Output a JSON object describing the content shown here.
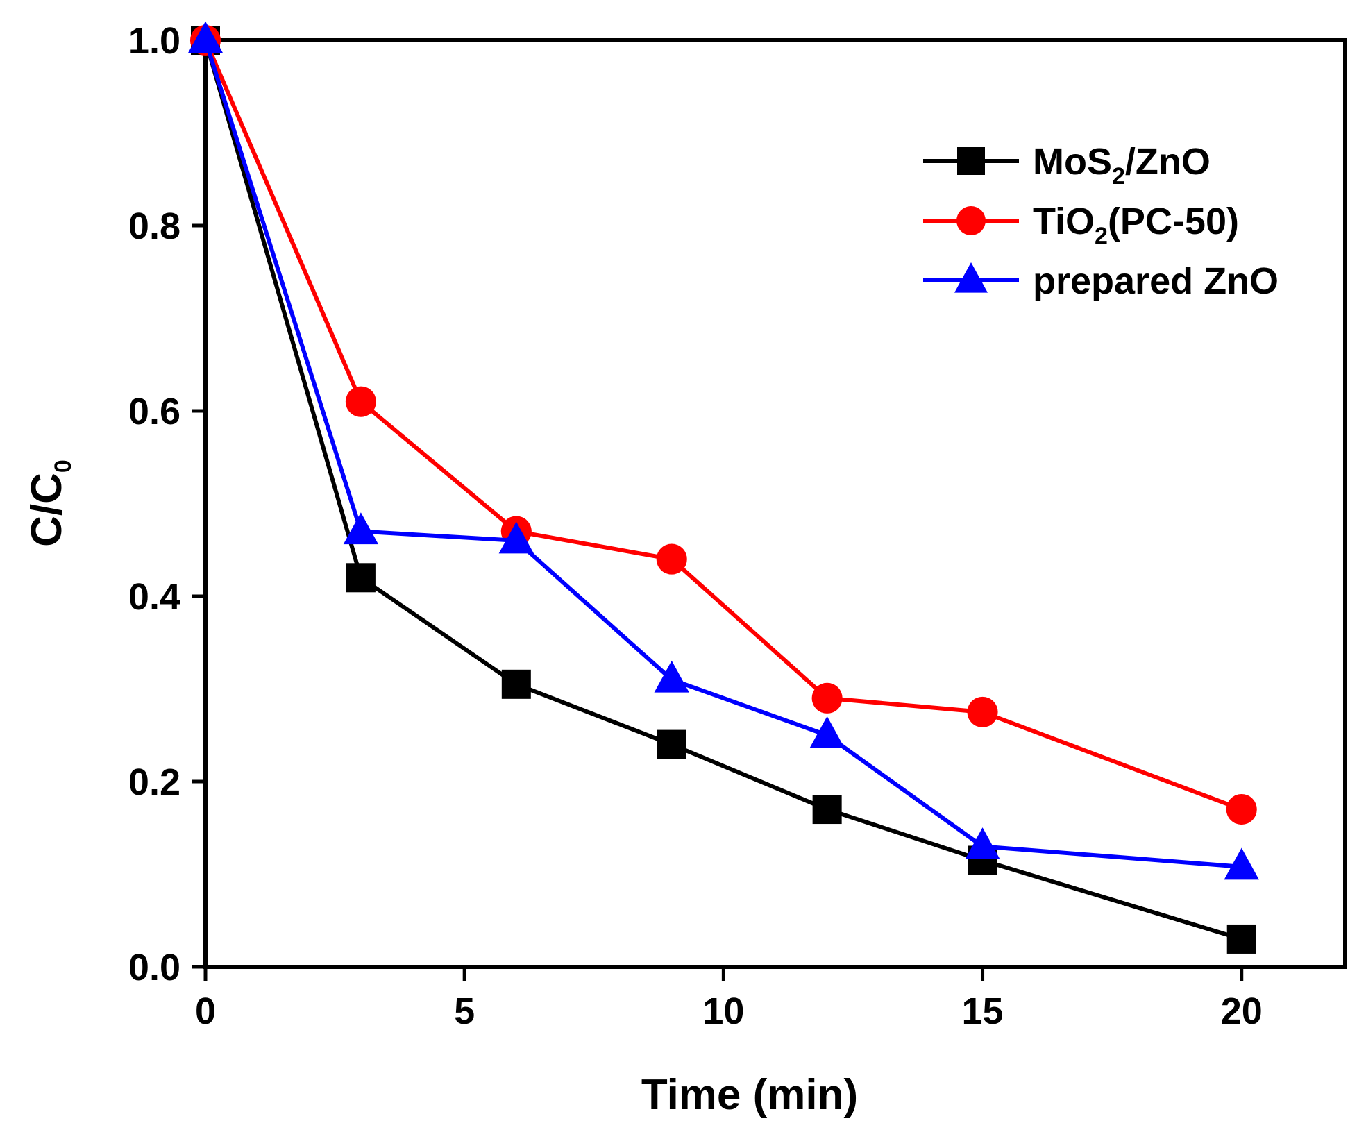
{
  "chart_data": {
    "type": "line",
    "title": "",
    "xlabel": "Time (min)",
    "ylabel": "C/C",
    "ylabel_sub": "0",
    "xlim": [
      0,
      22
    ],
    "ylim": [
      0.0,
      1.0
    ],
    "x_ticks": [
      0,
      5,
      10,
      15,
      20
    ],
    "x_tick_labels": [
      "0",
      "5",
      "10",
      "15",
      "20"
    ],
    "y_ticks": [
      0.0,
      0.2,
      0.4,
      0.6,
      0.8,
      1.0
    ],
    "y_tick_labels": [
      "0.0",
      "0.2",
      "0.4",
      "0.6",
      "0.8",
      "1.0"
    ],
    "grid": false,
    "legend_position": "top-right",
    "series": [
      {
        "name": "MoS2/ZnO",
        "label_main": "MoS",
        "label_sub": "2",
        "label_tail": "/ZnO",
        "color": "#000000",
        "marker": "square",
        "x": [
          0,
          3,
          6,
          9,
          12,
          15,
          20
        ],
        "y": [
          1.0,
          0.42,
          0.305,
          0.24,
          0.17,
          0.115,
          0.03
        ]
      },
      {
        "name": "TiO2(PC-50)",
        "label_main": "TiO",
        "label_sub": "2",
        "label_tail": "(PC-50)",
        "color": "#ff0000",
        "marker": "circle",
        "x": [
          0,
          3,
          6,
          9,
          12,
          15,
          20
        ],
        "y": [
          1.0,
          0.61,
          0.47,
          0.44,
          0.29,
          0.275,
          0.17
        ]
      },
      {
        "name": "prepared ZnO",
        "label_main": "prepared ZnO",
        "label_sub": "",
        "label_tail": "",
        "color": "#0000ff",
        "marker": "triangle",
        "x": [
          0,
          3,
          6,
          9,
          12,
          15,
          20
        ],
        "y": [
          1.0,
          0.47,
          0.46,
          0.31,
          0.25,
          0.13,
          0.108
        ]
      }
    ]
  }
}
